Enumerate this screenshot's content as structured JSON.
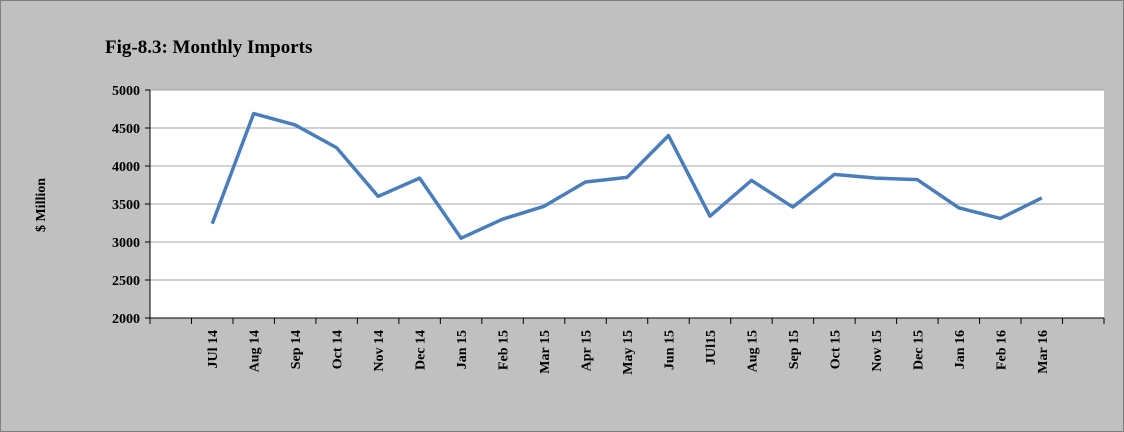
{
  "chart_data": {
    "type": "line",
    "title": "Fig-8.3: Monthly Imports",
    "y_label": "$ Million",
    "categories": [
      null,
      "JUl 14",
      "Aug 14",
      "Sep 14",
      "Oct 14",
      "Nov 14",
      "Dec 14",
      "Jan 15",
      "Feb 15",
      "Mar 15",
      "Apr 15",
      "May 15",
      "Jun 15",
      "JUl15",
      "Aug 15",
      "Sep 15",
      "Oct 15",
      "Nov 15",
      "Dec 15",
      "Jan 16",
      "Feb 16",
      "Mar 16",
      null
    ],
    "series": [
      {
        "name": "Monthly Imports",
        "color": "#4a7ebb",
        "values": [
          null,
          3240,
          4690,
          4540,
          4240,
          3600,
          3840,
          3050,
          3300,
          3470,
          3790,
          3850,
          4400,
          3340,
          3810,
          3460,
          3890,
          3840,
          3820,
          3450,
          3310,
          3580,
          null
        ]
      }
    ],
    "ylim": [
      2000,
      5000
    ],
    "yticks": [
      2000,
      2500,
      3000,
      3500,
      4000,
      4500,
      5000
    ],
    "grid": true
  }
}
